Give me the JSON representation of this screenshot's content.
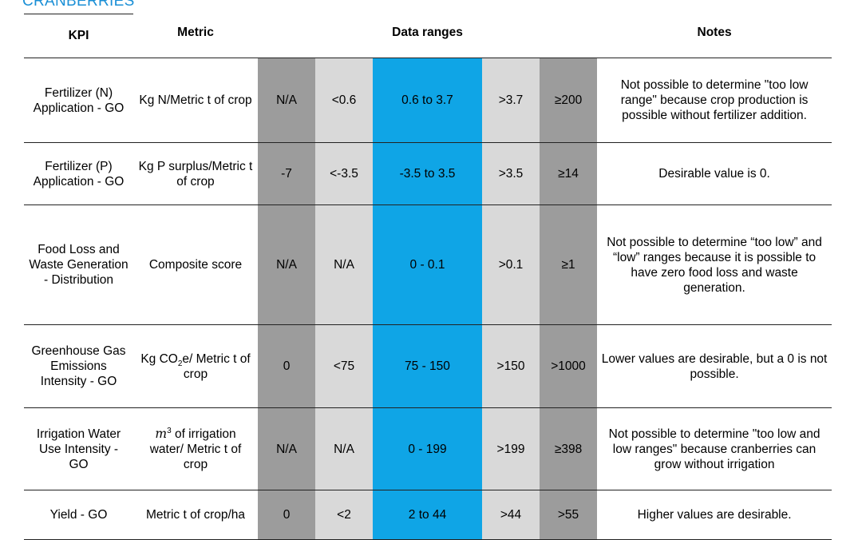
{
  "page_heading": "CRANBERRIES",
  "headers": {
    "kpi": "KPI",
    "metric": "Metric",
    "ranges": "Data ranges",
    "notes": "Notes"
  },
  "rows": [
    {
      "kpi": "Fertilizer (N) Application - GO",
      "metric": "Kg N/Metric t of crop",
      "ranges": [
        "N/A",
        "<0.6",
        "0.6 to 3.7",
        ">3.7",
        "≥200"
      ],
      "notes": "Not possible to determine \"too low range\" because crop production is possible without fertilizer addition."
    },
    {
      "kpi": "Fertilizer (P) Application - GO",
      "metric": "Kg P surplus/Metric t of crop",
      "ranges": [
        "-7",
        "<-3.5",
        "-3.5 to 3.5",
        ">3.5",
        "≥14"
      ],
      "notes": "Desirable value is 0."
    },
    {
      "kpi": "Food Loss and Waste Generation - Distribution",
      "metric": "Composite score",
      "ranges": [
        "N/A",
        "N/A",
        "0 - 0.1",
        ">0.1",
        "≥1"
      ],
      "notes": "Not possible to determine “too low” and “low” ranges because it is possible to have zero food loss and waste generation."
    },
    {
      "kpi": "Greenhouse Gas Emissions Intensity - GO",
      "metric_main": "Kg CO",
      "metric_sub": "2",
      "metric_rest": "e/ Metric t of crop",
      "ranges": [
        "0",
        "<75",
        "75 - 150",
        ">150",
        ">1000"
      ],
      "notes": "Lower values are desirable, but a 0 is not possible."
    },
    {
      "kpi": "Irrigation Water Use Intensity - GO",
      "metric_symbol": "m",
      "metric_sup": "3",
      "metric_rest": " of irrigation water/ Metric t of crop",
      "ranges": [
        "N/A",
        "N/A",
        "0 - 199",
        ">199",
        "≥398"
      ],
      "notes": "Not possible to determine \"too low and low ranges\" because cranberries can grow without irrigation"
    },
    {
      "kpi": "Yield - GO",
      "metric": "Metric t of crop/ha",
      "ranges": [
        "0",
        "<2",
        "2 to 44",
        ">44",
        ">55"
      ],
      "notes": "Higher values are desirable."
    }
  ]
}
